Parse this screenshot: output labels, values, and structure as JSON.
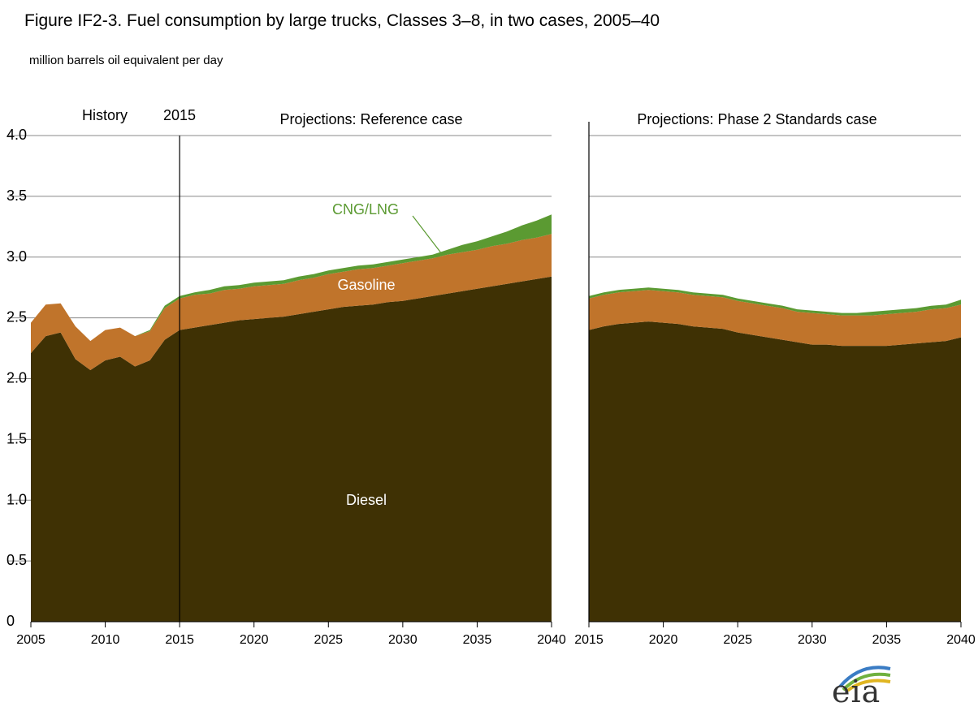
{
  "title": "Figure IF2-3. Fuel consumption by large trucks, Classes 3–8, in two cases, 2005–40",
  "units": "million barrels oil equivalent per day",
  "logo_text": "eia",
  "colors": {
    "diesel": "#3f3104",
    "gasoline": "#c0742b",
    "cng": "#5b9a32",
    "cng_label": "#5b9a32",
    "grid": "#888888"
  },
  "chart_data": [
    {
      "type": "area",
      "stacked": true,
      "x": [
        2005,
        2006,
        2007,
        2008,
        2009,
        2010,
        2011,
        2012,
        2013,
        2014,
        2015,
        2016,
        2017,
        2018,
        2019,
        2020,
        2021,
        2022,
        2023,
        2024,
        2025,
        2026,
        2027,
        2028,
        2029,
        2030,
        2031,
        2032,
        2033,
        2034,
        2035,
        2036,
        2037,
        2038,
        2039,
        2040
      ],
      "xlim": [
        2005,
        2040
      ],
      "ylim": [
        0,
        4.0
      ],
      "xticks": [
        "2005",
        "2010",
        "2015",
        "2020",
        "2025",
        "2030",
        "2035",
        "2040"
      ],
      "yticks": [
        "0",
        "0.5",
        "1.0",
        "1.5",
        "2.0",
        "2.5",
        "3.0",
        "3.5",
        "4.0"
      ],
      "grid": true,
      "annotations": {
        "history": "History",
        "divider_year_label": "2015",
        "divider_year": 2015,
        "projection": "Projections: Reference case"
      },
      "series_labels": {
        "diesel": "Diesel",
        "gasoline": "Gasoline",
        "cng": "CNG/LNG"
      },
      "series": [
        {
          "name": "Diesel",
          "values": [
            2.21,
            2.35,
            2.38,
            2.16,
            2.07,
            2.15,
            2.18,
            2.1,
            2.15,
            2.32,
            2.4,
            2.42,
            2.44,
            2.46,
            2.48,
            2.49,
            2.5,
            2.51,
            2.53,
            2.55,
            2.57,
            2.59,
            2.6,
            2.61,
            2.63,
            2.64,
            2.66,
            2.68,
            2.7,
            2.72,
            2.74,
            2.76,
            2.78,
            2.8,
            2.82,
            2.84
          ]
        },
        {
          "name": "Gasoline",
          "values": [
            0.25,
            0.26,
            0.24,
            0.27,
            0.24,
            0.25,
            0.24,
            0.25,
            0.24,
            0.26,
            0.26,
            0.27,
            0.26,
            0.27,
            0.26,
            0.27,
            0.27,
            0.27,
            0.28,
            0.28,
            0.29,
            0.29,
            0.3,
            0.3,
            0.3,
            0.31,
            0.31,
            0.31,
            0.32,
            0.32,
            0.32,
            0.33,
            0.33,
            0.34,
            0.34,
            0.35
          ]
        },
        {
          "name": "CNG/LNG",
          "values": [
            0.0,
            0.0,
            0.0,
            0.0,
            0.0,
            0.0,
            0.0,
            0.0,
            0.01,
            0.02,
            0.02,
            0.02,
            0.03,
            0.03,
            0.03,
            0.03,
            0.03,
            0.03,
            0.03,
            0.03,
            0.03,
            0.03,
            0.03,
            0.03,
            0.03,
            0.03,
            0.03,
            0.03,
            0.04,
            0.06,
            0.07,
            0.08,
            0.1,
            0.12,
            0.14,
            0.16
          ]
        }
      ]
    },
    {
      "type": "area",
      "stacked": true,
      "x": [
        2015,
        2016,
        2017,
        2018,
        2019,
        2020,
        2021,
        2022,
        2023,
        2024,
        2025,
        2026,
        2027,
        2028,
        2029,
        2030,
        2031,
        2032,
        2033,
        2034,
        2035,
        2036,
        2037,
        2038,
        2039,
        2040
      ],
      "xlim": [
        2015,
        2040
      ],
      "ylim": [
        0,
        4.0
      ],
      "xticks": [
        "2015",
        "2020",
        "2025",
        "2030",
        "2035",
        "2040"
      ],
      "grid": true,
      "annotations": {
        "projection": "Projections: Phase 2 Standards case"
      },
      "series": [
        {
          "name": "Diesel",
          "values": [
            2.4,
            2.43,
            2.45,
            2.46,
            2.47,
            2.46,
            2.45,
            2.43,
            2.42,
            2.41,
            2.38,
            2.36,
            2.34,
            2.32,
            2.3,
            2.28,
            2.28,
            2.27,
            2.27,
            2.27,
            2.27,
            2.28,
            2.29,
            2.3,
            2.31,
            2.34
          ]
        },
        {
          "name": "Gasoline",
          "values": [
            0.26,
            0.26,
            0.26,
            0.26,
            0.26,
            0.26,
            0.26,
            0.26,
            0.26,
            0.26,
            0.26,
            0.26,
            0.26,
            0.26,
            0.25,
            0.26,
            0.25,
            0.25,
            0.25,
            0.25,
            0.26,
            0.26,
            0.26,
            0.27,
            0.27,
            0.27
          ]
        },
        {
          "name": "CNG/LNG",
          "values": [
            0.02,
            0.02,
            0.02,
            0.02,
            0.02,
            0.02,
            0.02,
            0.02,
            0.02,
            0.02,
            0.02,
            0.02,
            0.02,
            0.02,
            0.02,
            0.02,
            0.02,
            0.02,
            0.02,
            0.03,
            0.03,
            0.03,
            0.03,
            0.03,
            0.03,
            0.04
          ]
        }
      ]
    }
  ]
}
